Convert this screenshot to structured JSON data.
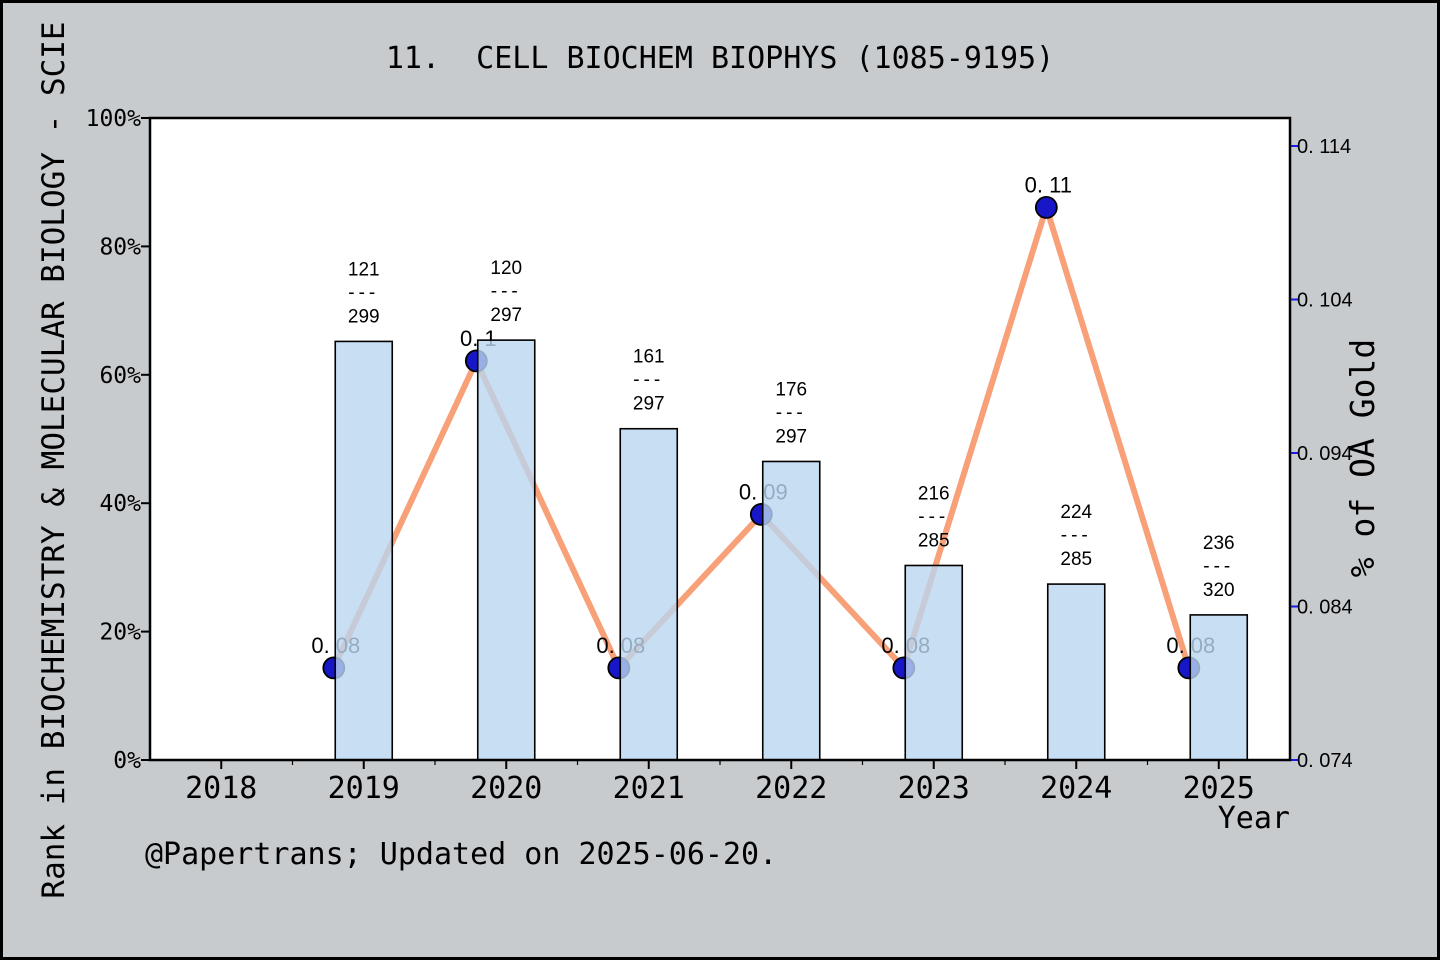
{
  "figure": {
    "title": "11.  CELL BIOCHEM BIOPHYS (1085-9195)",
    "footer": "@Papertrans; Updated on 2025-06-20."
  },
  "axes": {
    "x": {
      "label": "Year",
      "tick_labels": [
        "2018",
        "2019",
        "2020",
        "2021",
        "2022",
        "2023",
        "2024",
        "2025"
      ],
      "tick_years": [
        2018,
        2019,
        2020,
        2021,
        2022,
        2023,
        2024,
        2025
      ],
      "range": [
        2017.5,
        2025.5
      ]
    },
    "y_left": {
      "label": "Rank in BIOCHEMISTRY & MOLECULAR BIOLOGY - SCIE",
      "tick_labels": [
        "0%",
        "20%",
        "40%",
        "60%",
        "80%",
        "100%"
      ],
      "tick_values": [
        0,
        20,
        40,
        60,
        80,
        100
      ],
      "range": [
        0,
        100
      ]
    },
    "y_right": {
      "label": "% of OA Gold",
      "tick_labels": [
        "0. 074",
        "0. 084",
        "0. 094",
        "0. 104",
        "0. 114"
      ],
      "tick_values": [
        0.074,
        0.084,
        0.094,
        0.104,
        0.114
      ],
      "range": [
        0.074,
        0.1158
      ]
    }
  },
  "chart_data": {
    "type": "bar+line combo with dual y-axes",
    "grid": false,
    "legend": "none",
    "categories": [
      2019,
      2020,
      2021,
      2022,
      2023,
      2024,
      2025
    ],
    "series": [
      {
        "name": "Rank in category (bars, left % axis)",
        "type": "bar",
        "axis": "left",
        "bar_top_percent": [
          65.2,
          65.4,
          51.6,
          46.5,
          30.3,
          27.4,
          22.6
        ],
        "rank_labels": [
          {
            "rank": "121",
            "sep": "---",
            "total": "299"
          },
          {
            "rank": "120",
            "sep": "---",
            "total": "297"
          },
          {
            "rank": "161",
            "sep": "---",
            "total": "297"
          },
          {
            "rank": "176",
            "sep": "---",
            "total": "297"
          },
          {
            "rank": "216",
            "sep": "---",
            "total": "285"
          },
          {
            "rank": "224",
            "sep": "---",
            "total": "285"
          },
          {
            "rank": "236",
            "sep": "---",
            "total": "320"
          }
        ]
      },
      {
        "name": "% of OA Gold (line, right axis)",
        "type": "line",
        "axis": "right",
        "values": [
          0.08,
          0.1,
          0.08,
          0.09,
          0.08,
          0.11,
          0.08
        ],
        "point_labels": [
          "0. 08",
          "0. 1",
          "0. 08",
          "0. 09",
          "0. 08",
          "0. 11",
          "0. 08"
        ],
        "x_offset_years": -0.21
      }
    ]
  },
  "colors": {
    "figure_background": "#c7cbce",
    "frame": "#000000",
    "plot_background": "#ffffff",
    "bar_fill": "rgba(186,214,240,0.8)",
    "bar_edge": "#000000",
    "line": "#f8a078",
    "marker_fill": "#1717c8",
    "marker_edge": "#000000",
    "right_axis_text": "#1a1aee",
    "point_label_text": "#1a1ae8",
    "rank_label_text": "#4d4d4d",
    "rank_sep_text": "#8a8a8a",
    "tick_text": "#000000",
    "title_text": "#000000",
    "footer_text": "#226664"
  }
}
